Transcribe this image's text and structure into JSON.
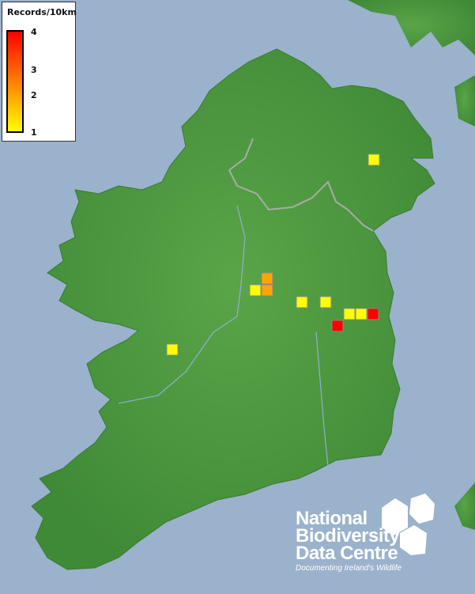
{
  "legend": {
    "title": "Records/10km",
    "ticks": [
      "4",
      "3",
      "2",
      "1"
    ],
    "color_max": "#ff0000",
    "color_mid": "#ffa500",
    "color_min": "#ffff00"
  },
  "map": {
    "sea_color": "#9ab2cc",
    "land_color": "#4f9a3f",
    "records": [
      {
        "records": 2
      },
      {
        "records": 1
      },
      {
        "records": 2
      },
      {
        "records": 1
      },
      {
        "records": 1
      },
      {
        "records": 1
      },
      {
        "records": 1
      },
      {
        "records": 4
      },
      {
        "records": 4
      },
      {
        "records": 1
      },
      {
        "records": 1
      }
    ]
  },
  "logo": {
    "line1": "National",
    "line2": "Biodiversity",
    "line3": "Data Centre",
    "tagline": "Documenting Ireland's Wildlife"
  }
}
